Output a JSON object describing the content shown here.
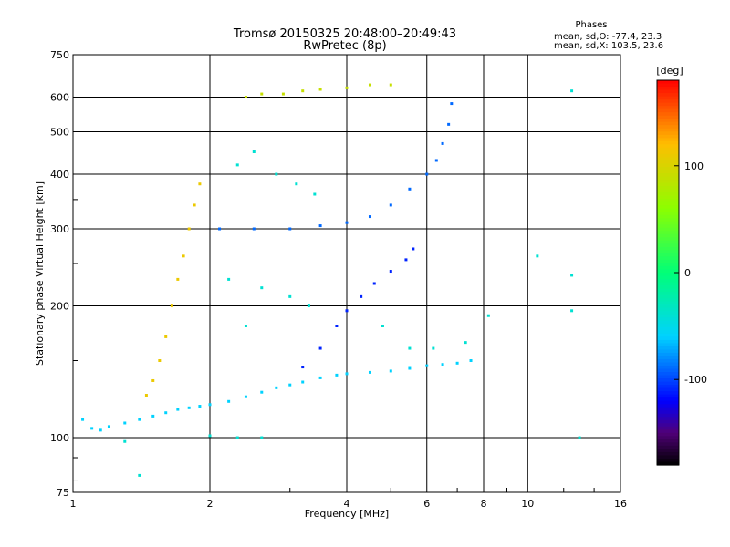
{
  "chart_data": {
    "type": "scatter",
    "title": "Tromsø 20150325 20:48:00–20:49:43",
    "subtitle": "RwPretec (8p)",
    "xlabel": "Frequency [MHz]",
    "ylabel": "Stationary phase Virtual Height [km]",
    "x_scale": "log",
    "y_scale": "log",
    "xlim": [
      1,
      16
    ],
    "ylim": [
      75,
      750
    ],
    "x_ticks": [
      1,
      2,
      4,
      6,
      8,
      10,
      16
    ],
    "y_ticks": [
      75,
      100,
      200,
      300,
      400,
      500,
      600,
      750
    ],
    "grid": true,
    "phase_stats": {
      "title": "Phases",
      "line_o": "mean, sd,O: -77.4, 23.3",
      "line_x": "mean, sd,X: 103.5, 23.6"
    },
    "colorbar": {
      "label": "[deg]",
      "range": [
        -180,
        180
      ],
      "ticks": [
        100,
        0,
        -100
      ],
      "palette": "rainbow"
    },
    "series": [
      {
        "trace": "low-height",
        "phase": -60,
        "points": [
          [
            1.05,
            110
          ],
          [
            1.1,
            105
          ],
          [
            1.15,
            104
          ],
          [
            1.2,
            106
          ],
          [
            1.3,
            108
          ],
          [
            1.4,
            110
          ],
          [
            1.5,
            112
          ],
          [
            1.6,
            114
          ],
          [
            1.7,
            116
          ],
          [
            1.8,
            117
          ],
          [
            1.9,
            118
          ],
          [
            2.0,
            119
          ],
          [
            2.2,
            121
          ],
          [
            2.4,
            124
          ],
          [
            2.6,
            127
          ],
          [
            2.8,
            130
          ],
          [
            3.0,
            132
          ],
          [
            3.2,
            134
          ],
          [
            3.5,
            137
          ],
          [
            3.8,
            139
          ],
          [
            4.0,
            140
          ],
          [
            4.5,
            141
          ],
          [
            5.0,
            142
          ],
          [
            5.5,
            144
          ],
          [
            6.0,
            146
          ],
          [
            6.5,
            147
          ],
          [
            7.0,
            148
          ],
          [
            7.5,
            150
          ]
        ]
      },
      {
        "trace": "upper-layer-x",
        "phase": 110,
        "points": [
          [
            1.45,
            125
          ],
          [
            1.5,
            135
          ],
          [
            1.55,
            150
          ],
          [
            1.6,
            170
          ],
          [
            1.65,
            200
          ],
          [
            1.7,
            230
          ],
          [
            1.75,
            260
          ],
          [
            1.8,
            300
          ],
          [
            1.85,
            340
          ],
          [
            1.9,
            380
          ]
        ]
      },
      {
        "trace": "upper-layer-o",
        "phase": -90,
        "points": [
          [
            2.1,
            300
          ],
          [
            2.5,
            300
          ],
          [
            3.0,
            300
          ],
          [
            3.5,
            305
          ],
          [
            4.0,
            310
          ],
          [
            4.5,
            320
          ],
          [
            5.0,
            340
          ],
          [
            5.5,
            370
          ],
          [
            6.0,
            400
          ],
          [
            6.3,
            430
          ],
          [
            6.5,
            470
          ],
          [
            6.7,
            520
          ],
          [
            6.8,
            580
          ]
        ]
      },
      {
        "trace": "layer-ramp",
        "phase": -110,
        "points": [
          [
            3.2,
            145
          ],
          [
            3.5,
            160
          ],
          [
            3.8,
            180
          ],
          [
            4.0,
            195
          ],
          [
            4.3,
            210
          ],
          [
            4.6,
            225
          ],
          [
            5.0,
            240
          ],
          [
            5.4,
            255
          ],
          [
            5.6,
            270
          ]
        ]
      },
      {
        "trace": "high-cluster",
        "phase": 90,
        "points": [
          [
            2.4,
            600
          ],
          [
            2.6,
            610
          ],
          [
            2.9,
            610
          ],
          [
            3.2,
            620
          ],
          [
            3.5,
            625
          ],
          [
            4.0,
            630
          ],
          [
            4.5,
            640
          ],
          [
            5.0,
            640
          ]
        ]
      },
      {
        "trace": "scattered",
        "phase": -40,
        "points": [
          [
            2.3,
            420
          ],
          [
            2.5,
            450
          ],
          [
            2.8,
            400
          ],
          [
            3.1,
            380
          ],
          [
            3.4,
            360
          ],
          [
            2.2,
            230
          ],
          [
            2.6,
            220
          ],
          [
            3.0,
            210
          ],
          [
            3.3,
            200
          ],
          [
            2.4,
            180
          ],
          [
            4.8,
            180
          ],
          [
            5.5,
            160
          ],
          [
            6.2,
            160
          ],
          [
            7.3,
            165
          ],
          [
            8.2,
            190
          ],
          [
            10.5,
            260
          ],
          [
            12.5,
            195
          ],
          [
            12.5,
            235
          ],
          [
            12.5,
            620
          ],
          [
            1.3,
            98
          ],
          [
            2.0,
            101
          ],
          [
            2.3,
            100
          ],
          [
            2.6,
            100
          ],
          [
            1.4,
            82
          ],
          [
            13.0,
            100
          ]
        ]
      }
    ]
  }
}
